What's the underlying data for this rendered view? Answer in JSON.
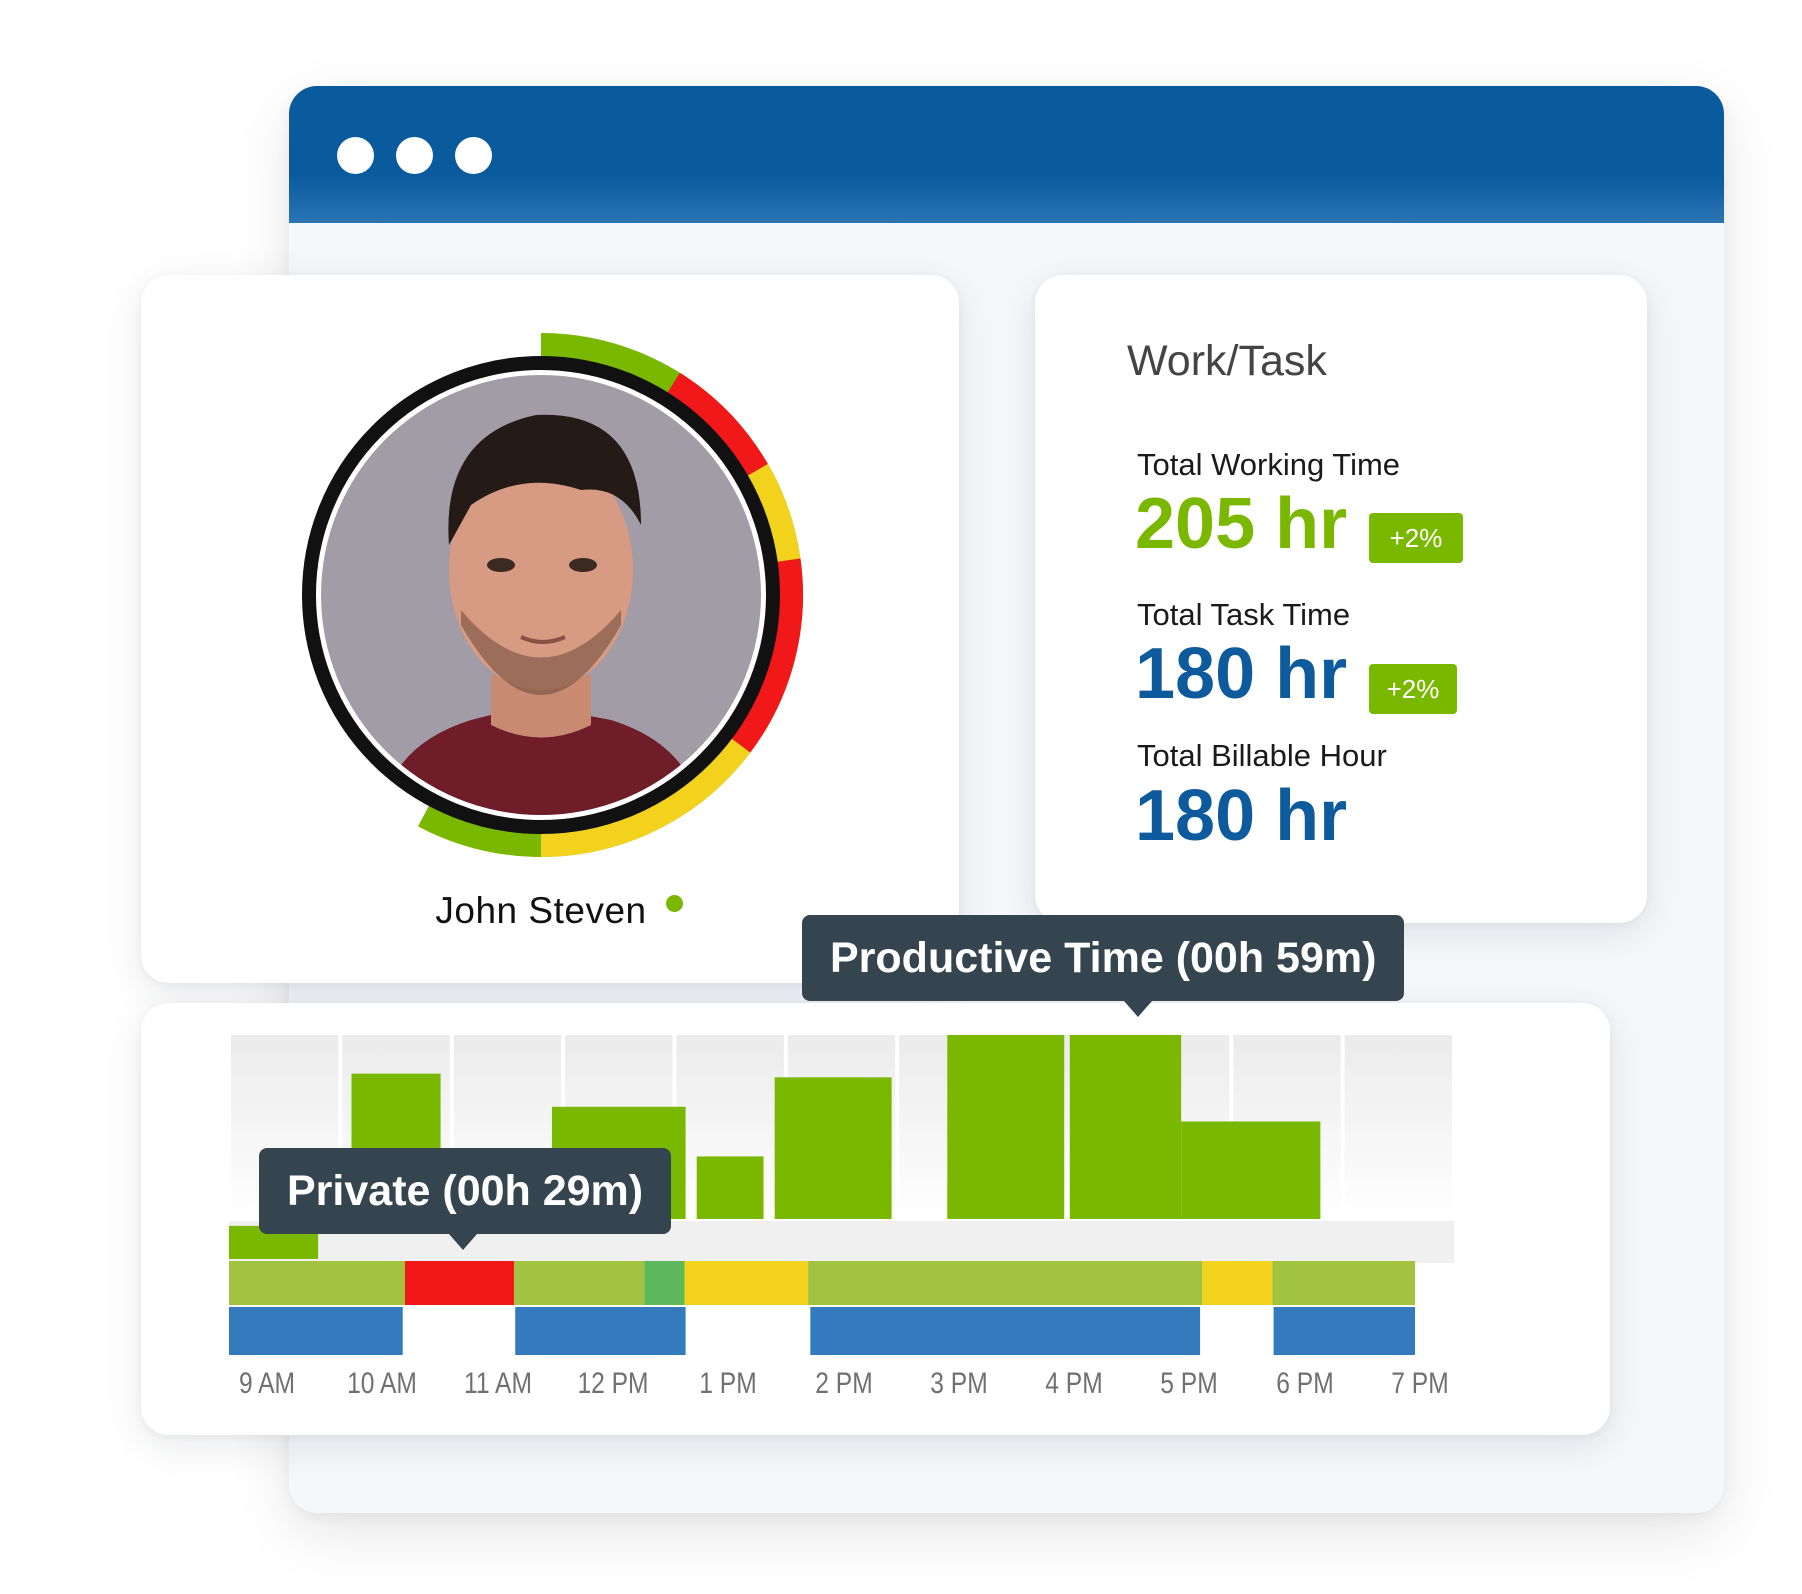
{
  "window": {
    "dots": [
      "window-dot-1",
      "window-dot-2",
      "window-dot-3"
    ]
  },
  "profile": {
    "name": "John Steven",
    "status_color": "#7ab800",
    "ring_segments": [
      {
        "color": "#7ab800",
        "from_deg": 270,
        "to_deg": 478
      },
      {
        "color": "#f01818",
        "from_deg": 302,
        "to_deg": 330
      },
      {
        "color": "#f2d21d",
        "from_deg": 330,
        "to_deg": 352
      },
      {
        "color": "#f01818",
        "from_deg": 352,
        "to_deg": 397
      },
      {
        "color": "#f2d21d",
        "from_deg": 397,
        "to_deg": 450
      }
    ]
  },
  "stats": {
    "title": "Work/Task",
    "items": [
      {
        "label": "Total Working Time",
        "value": "205 hr",
        "badge": "+2%",
        "color": "green"
      },
      {
        "label": "Total Task Time",
        "value": "180 hr",
        "badge": "+2%",
        "color": "blue"
      },
      {
        "label": "Total Billable Hour",
        "value": "180 hr",
        "badge": "",
        "color": "blue"
      }
    ]
  },
  "tooltips": {
    "productive": "Productive Time (00h 59m)",
    "private": "Private (00h 29m)"
  },
  "chart_data": {
    "type": "bar",
    "categories": [
      "9 AM",
      "10 AM",
      "11 AM",
      "12 PM",
      "1 PM",
      "2 PM",
      "3 PM",
      "4 PM",
      "5 PM",
      "6 PM",
      "7 PM"
    ],
    "x_range": [
      9,
      20
    ],
    "bars": [
      {
        "start": 9.0,
        "end": 9.8,
        "value": 0.18
      },
      {
        "start": 10.1,
        "end": 10.9,
        "value": 0.79
      },
      {
        "start": 11.9,
        "end": 13.1,
        "value": 0.61
      },
      {
        "start": 13.2,
        "end": 13.8,
        "value": 0.34
      },
      {
        "start": 13.9,
        "end": 14.95,
        "value": 0.77
      },
      {
        "start": 15.45,
        "end": 16.5,
        "value": 1.0
      },
      {
        "start": 16.55,
        "end": 17.55,
        "value": 1.0
      },
      {
        "start": 17.55,
        "end": 18.8,
        "value": 0.53
      }
    ],
    "activity_strip": [
      {
        "start": 9.0,
        "end": 10.58,
        "color": "#a1c340"
      },
      {
        "start": 10.58,
        "end": 11.56,
        "color": "#f01818"
      },
      {
        "start": 11.56,
        "end": 12.73,
        "color": "#a1c340"
      },
      {
        "start": 12.73,
        "end": 13.09,
        "color": "#5cb85c"
      },
      {
        "start": 13.09,
        "end": 14.2,
        "color": "#f2d21d"
      },
      {
        "start": 14.2,
        "end": 17.74,
        "color": "#a1c340"
      },
      {
        "start": 17.74,
        "end": 18.37,
        "color": "#f2d21d"
      },
      {
        "start": 18.37,
        "end": 19.65,
        "color": "#a1c340"
      }
    ],
    "task_strip": [
      {
        "start": 9.0,
        "end": 10.56,
        "color": "#347bbd"
      },
      {
        "start": 11.57,
        "end": 13.1,
        "color": "#347bbd"
      },
      {
        "start": 14.22,
        "end": 17.72,
        "color": "#347bbd"
      },
      {
        "start": 18.38,
        "end": 19.65,
        "color": "#347bbd"
      }
    ],
    "colors": {
      "productive": "#7ab800",
      "private": "#f01818",
      "neutral": "#f2d21d",
      "task": "#347bbd"
    }
  }
}
